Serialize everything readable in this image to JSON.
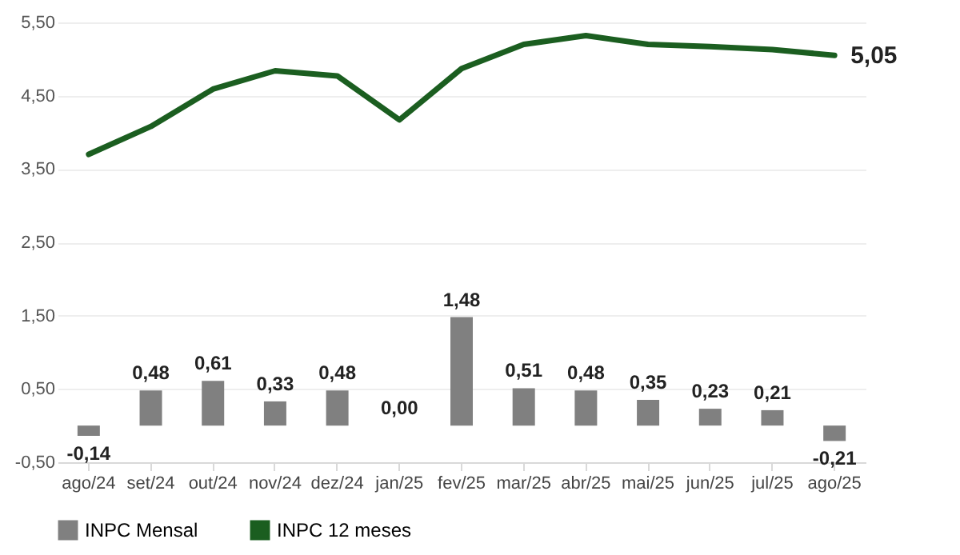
{
  "chart_data": {
    "type": "bar",
    "categories": [
      "ago/24",
      "set/24",
      "out/24",
      "nov/24",
      "dez/24",
      "jan/25",
      "fev/25",
      "mar/25",
      "abr/25",
      "mai/25",
      "jun/25",
      "jul/25",
      "ago/25"
    ],
    "series": [
      {
        "name": "INPC Mensal",
        "color": "#808080",
        "values": [
          -0.14,
          0.48,
          0.61,
          0.33,
          0.48,
          0,
          1.48,
          0.51,
          0.48,
          0.35,
          0.23,
          0.21,
          -0.21
        ],
        "value_labels": [
          "-0,14",
          "0,48",
          "0,61",
          "0,33",
          "0,48",
          "0,00",
          "1,48",
          "0,51",
          "0,48",
          "0,35",
          "0,23",
          "0,21",
          "-0,21"
        ]
      },
      {
        "name": "INPC 12 meses",
        "type": "line",
        "color": "#1b5e20",
        "values": [
          3.7,
          4.08,
          4.59,
          4.84,
          4.77,
          4.17,
          4.87,
          5.2,
          5.32,
          5.2,
          5.17,
          5.13,
          5.05
        ],
        "value_labels": [
          null,
          null,
          null,
          null,
          null,
          null,
          null,
          null,
          null,
          null,
          null,
          null,
          "5,05"
        ]
      }
    ],
    "ylim": [
      -0.5,
      5.5
    ],
    "yticks": [
      {
        "value": -0.5,
        "label": "-0,50"
      },
      {
        "value": 0.5,
        "label": "0,50"
      },
      {
        "value": 1.5,
        "label": "1,50"
      },
      {
        "value": 2.5,
        "label": "2,50"
      },
      {
        "value": 3.5,
        "label": "3,50"
      },
      {
        "value": 4.5,
        "label": "4,50"
      },
      {
        "value": 5.5,
        "label": "5,50"
      }
    ],
    "grid": "y",
    "legend": "bottom"
  }
}
